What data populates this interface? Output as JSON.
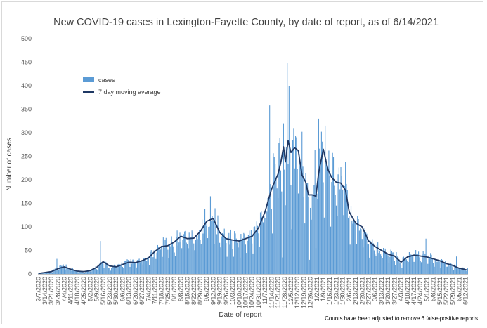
{
  "chart_data": {
    "type": "bar",
    "title": "New COVID-19 cases in Lexington-Fayette County, by date of report, as of 6/14/2021",
    "xlabel": "Date of report",
    "ylabel": "Number of cases",
    "ylim": [
      0,
      500
    ],
    "yticks": [
      0,
      50,
      100,
      150,
      200,
      250,
      300,
      350,
      400,
      450,
      500
    ],
    "grid": false,
    "legend_position": "top-left",
    "footnote": "Counts have been adjusted to remove 6 false-positive reports",
    "x_start_date": "3/7/2020",
    "x_end_date": "6/14/2021",
    "x_tick_labels": [
      "3/7/2020",
      "3/14/2020",
      "3/21/2020",
      "3/28/2020",
      "4/4/2020",
      "4/11/2020",
      "4/18/2020",
      "4/25/2020",
      "5/2/2020",
      "5/9/2020",
      "5/16/2020",
      "5/23/2020",
      "5/30/2020",
      "6/6/2020",
      "6/13/2020",
      "6/20/2020",
      "6/27/2020",
      "7/4/2020",
      "7/11/2020",
      "7/18/2020",
      "7/25/2020",
      "8/1/2020",
      "8/8/2020",
      "8/15/2020",
      "8/22/2020",
      "8/29/2020",
      "9/5/2020",
      "9/12/2020",
      "9/19/2020",
      "9/26/2020",
      "10/3/2020",
      "10/10/2020",
      "10/17/2020",
      "10/24/2020",
      "10/31/2020",
      "11/7/2020",
      "11/14/2020",
      "11/21/2020",
      "11/28/2020",
      "12/5/2020",
      "12/12/2020",
      "12/19/2020",
      "12/26/2020",
      "1/2/2021",
      "1/9/2021",
      "1/16/2021",
      "1/23/2021",
      "1/30/2021",
      "2/6/2021",
      "2/13/2021",
      "2/20/2021",
      "2/27/2021",
      "3/6/2021",
      "3/13/2021",
      "3/20/2021",
      "3/27/2021",
      "4/3/2021",
      "4/10/2021",
      "4/17/2021",
      "4/24/2021",
      "5/1/2021",
      "5/8/2021",
      "5/15/2021",
      "5/22/2021",
      "5/29/2021",
      "6/5/2021",
      "6/12/2021"
    ],
    "colors": {
      "cases": "#5b9bd5",
      "average": "#1f3864"
    },
    "series": [
      {
        "name": "cases",
        "type": "bar",
        "keypoints": [
          [
            "3/7/2020",
            1
          ],
          [
            "3/14/2020",
            2
          ],
          [
            "3/21/2020",
            5
          ],
          [
            "3/28/2020",
            14
          ],
          [
            "4/4/2020",
            16
          ],
          [
            "4/11/2020",
            10
          ],
          [
            "4/18/2020",
            6
          ],
          [
            "4/25/2020",
            4
          ],
          [
            "5/2/2020",
            6
          ],
          [
            "5/9/2020",
            15
          ],
          [
            "5/16/2020",
            24
          ],
          [
            "5/23/2020",
            13
          ],
          [
            "5/30/2020",
            16
          ],
          [
            "6/6/2020",
            21
          ],
          [
            "6/13/2020",
            25
          ],
          [
            "6/20/2020",
            24
          ],
          [
            "6/27/2020",
            27
          ],
          [
            "7/4/2020",
            33
          ],
          [
            "7/11/2020",
            45
          ],
          [
            "7/18/2020",
            58
          ],
          [
            "7/25/2020",
            62
          ],
          [
            "8/1/2020",
            66
          ],
          [
            "8/8/2020",
            78
          ],
          [
            "8/15/2020",
            77
          ],
          [
            "8/22/2020",
            76
          ],
          [
            "8/29/2020",
            90
          ],
          [
            "9/5/2020",
            110
          ],
          [
            "9/12/2020",
            115
          ],
          [
            "9/19/2020",
            85
          ],
          [
            "9/26/2020",
            73
          ],
          [
            "10/3/2020",
            70
          ],
          [
            "10/10/2020",
            68
          ],
          [
            "10/17/2020",
            74
          ],
          [
            "10/24/2020",
            78
          ],
          [
            "10/31/2020",
            96
          ],
          [
            "11/7/2020",
            130
          ],
          [
            "11/14/2020",
            175
          ],
          [
            "11/21/2020",
            205
          ],
          [
            "11/28/2020",
            215
          ],
          [
            "12/5/2020",
            245
          ],
          [
            "12/12/2020",
            250
          ],
          [
            "12/19/2020",
            208
          ],
          [
            "12/26/2020",
            170
          ],
          [
            "1/2/2021",
            220
          ],
          [
            "1/9/2021",
            255
          ],
          [
            "1/16/2021",
            205
          ],
          [
            "1/23/2021",
            195
          ],
          [
            "1/30/2021",
            185
          ],
          [
            "2/6/2021",
            135
          ],
          [
            "2/13/2021",
            110
          ],
          [
            "2/20/2021",
            95
          ],
          [
            "2/27/2021",
            68
          ],
          [
            "3/6/2021",
            56
          ],
          [
            "3/13/2021",
            48
          ],
          [
            "3/20/2021",
            40
          ],
          [
            "3/27/2021",
            37
          ],
          [
            "4/3/2021",
            24
          ],
          [
            "4/10/2021",
            36
          ],
          [
            "4/17/2021",
            38
          ],
          [
            "4/24/2021",
            38
          ],
          [
            "5/1/2021",
            38
          ],
          [
            "5/8/2021",
            33
          ],
          [
            "5/15/2021",
            28
          ],
          [
            "5/22/2021",
            22
          ],
          [
            "5/29/2021",
            17
          ],
          [
            "6/5/2021",
            13
          ],
          [
            "6/12/2021",
            10
          ],
          [
            "6/14/2021",
            9
          ]
        ],
        "peaks": [
          [
            "3/27/2020",
            32
          ],
          [
            "5/13/2020",
            70
          ],
          [
            "9/9/2020",
            165
          ],
          [
            "11/12/2020",
            358
          ],
          [
            "11/22/2020",
            278
          ],
          [
            "11/27/2020",
            320
          ],
          [
            "12/1/2020",
            448
          ],
          [
            "12/3/2020",
            400
          ],
          [
            "12/8/2020",
            310
          ],
          [
            "12/10/2020",
            293
          ],
          [
            "12/17/2020",
            302
          ],
          [
            "1/4/2021",
            330
          ],
          [
            "1/11/2021",
            315
          ],
          [
            "1/15/2021",
            262
          ],
          [
            "2/2/2021",
            238
          ],
          [
            "4/30/2021",
            75
          ],
          [
            "6/2/2021",
            37
          ]
        ],
        "dips": [
          [
            "11/26/2020",
            35
          ],
          [
            "12/6/2020",
            95
          ],
          [
            "12/25/2020",
            30
          ],
          [
            "1/1/2021",
            55
          ]
        ]
      },
      {
        "name": "7 day moving average",
        "type": "line",
        "keypoints": [
          [
            "3/7/2020",
            1
          ],
          [
            "3/21/2020",
            5
          ],
          [
            "3/28/2020",
            11
          ],
          [
            "4/4/2020",
            15
          ],
          [
            "4/11/2020",
            10
          ],
          [
            "4/18/2020",
            6
          ],
          [
            "4/25/2020",
            5
          ],
          [
            "5/2/2020",
            7
          ],
          [
            "5/9/2020",
            14
          ],
          [
            "5/16/2020",
            26
          ],
          [
            "5/23/2020",
            17
          ],
          [
            "5/30/2020",
            15
          ],
          [
            "6/6/2020",
            20
          ],
          [
            "6/13/2020",
            25
          ],
          [
            "6/20/2020",
            24
          ],
          [
            "6/27/2020",
            28
          ],
          [
            "7/4/2020",
            34
          ],
          [
            "7/11/2020",
            48
          ],
          [
            "7/18/2020",
            58
          ],
          [
            "7/25/2020",
            60
          ],
          [
            "8/1/2020",
            68
          ],
          [
            "8/8/2020",
            80
          ],
          [
            "8/15/2020",
            75
          ],
          [
            "8/22/2020",
            76
          ],
          [
            "8/29/2020",
            90
          ],
          [
            "9/5/2020",
            112
          ],
          [
            "9/12/2020",
            118
          ],
          [
            "9/19/2020",
            88
          ],
          [
            "9/26/2020",
            75
          ],
          [
            "10/3/2020",
            72
          ],
          [
            "10/10/2020",
            70
          ],
          [
            "10/17/2020",
            75
          ],
          [
            "10/24/2020",
            80
          ],
          [
            "10/31/2020",
            98
          ],
          [
            "11/7/2020",
            132
          ],
          [
            "11/14/2020",
            180
          ],
          [
            "11/21/2020",
            212
          ],
          [
            "11/24/2020",
            236
          ],
          [
            "11/27/2020",
            270
          ],
          [
            "11/29/2020",
            238
          ],
          [
            "12/2/2020",
            283
          ],
          [
            "12/5/2020",
            258
          ],
          [
            "12/9/2020",
            268
          ],
          [
            "12/13/2020",
            262
          ],
          [
            "12/17/2020",
            210
          ],
          [
            "12/21/2020",
            195
          ],
          [
            "12/24/2020",
            168
          ],
          [
            "12/28/2020",
            168
          ],
          [
            "1/1/2021",
            165
          ],
          [
            "1/4/2021",
            215
          ],
          [
            "1/9/2021",
            265
          ],
          [
            "1/14/2021",
            222
          ],
          [
            "1/18/2021",
            205
          ],
          [
            "1/23/2021",
            195
          ],
          [
            "1/28/2021",
            193
          ],
          [
            "2/2/2021",
            178
          ],
          [
            "2/6/2021",
            132
          ],
          [
            "2/13/2021",
            108
          ],
          [
            "2/20/2021",
            100
          ],
          [
            "2/27/2021",
            70
          ],
          [
            "3/6/2021",
            58
          ],
          [
            "3/13/2021",
            50
          ],
          [
            "3/20/2021",
            42
          ],
          [
            "3/27/2021",
            38
          ],
          [
            "4/3/2021",
            25
          ],
          [
            "4/10/2021",
            36
          ],
          [
            "4/17/2021",
            40
          ],
          [
            "4/24/2021",
            38
          ],
          [
            "5/1/2021",
            36
          ],
          [
            "5/8/2021",
            32
          ],
          [
            "5/15/2021",
            28
          ],
          [
            "5/22/2021",
            22
          ],
          [
            "5/29/2021",
            18
          ],
          [
            "6/5/2021",
            12
          ],
          [
            "6/10/2021",
            10
          ],
          [
            "6/14/2021",
            8
          ]
        ]
      }
    ]
  }
}
